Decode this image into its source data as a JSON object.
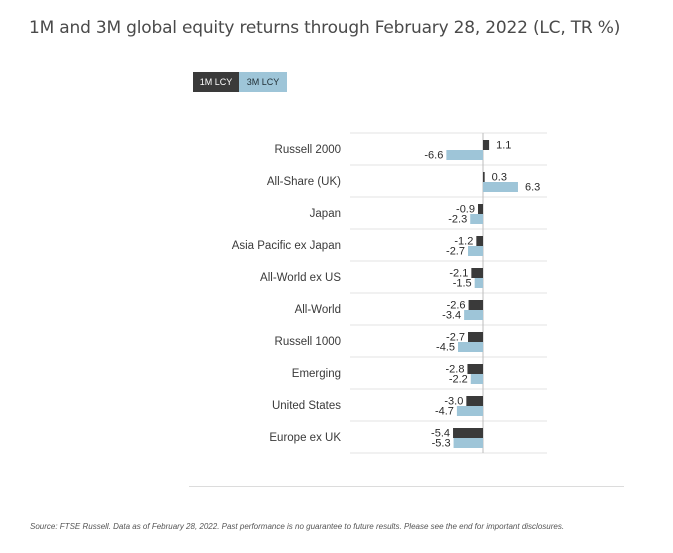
{
  "title": "1M and 3M global equity returns through February 28, 2022 (LC, TR %)",
  "footer": "Source: FTSE Russell. Data as of February 28, 2022. Past performance is no guarantee to future results. Please see the end for important disclosures.",
  "colors": {
    "series1": "#3a3a3a",
    "series2": "#9ec5d8",
    "grid": "#e3e3e3",
    "axis": "#bdbdbd"
  },
  "chart_data": {
    "type": "bar",
    "orientation": "horizontal",
    "title": "1M and 3M global equity returns through February 28, 2022 (LC, TR %)",
    "categories": [
      "Russell 2000",
      "All-Share (UK)",
      "Japan",
      "Asia Pacific ex Japan",
      "All-World ex US",
      "All-World",
      "Russell 1000",
      "Emerging",
      "United States",
      "Europe ex UK"
    ],
    "series": [
      {
        "name": "1M LCY",
        "values": [
          1.1,
          0.3,
          -0.9,
          -1.2,
          -2.1,
          -2.6,
          -2.7,
          -2.8,
          -3.0,
          -5.4
        ]
      },
      {
        "name": "3M LCY",
        "values": [
          -6.6,
          6.3,
          -2.3,
          -2.7,
          -1.5,
          -3.4,
          -4.5,
          -2.2,
          -4.7,
          -5.3
        ]
      }
    ],
    "xlim": [
      -7.5,
      7.5
    ],
    "grid": true,
    "legend_position": "top-left"
  }
}
